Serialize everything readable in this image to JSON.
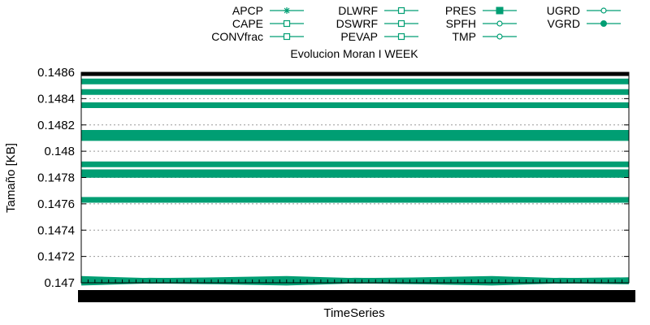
{
  "chart_data": {
    "type": "line",
    "title": "Evolucion Moran I WEEK",
    "xlabel": "TimeSeries",
    "ylabel": "Tamaño [KB]",
    "ylim": [
      0.147,
      0.1486
    ],
    "yticks": [
      "0.147",
      "0.1472",
      "0.1474",
      "0.1476",
      "0.1478",
      "0.148",
      "0.1482",
      "0.1484",
      "0.1486"
    ],
    "y_gridlines": true,
    "x_tick_labels_illegible": true,
    "line_color": "#009e73",
    "legend_position": "top",
    "series": [
      {
        "name": "APCP",
        "marker": "star",
        "value": 0.14784
      },
      {
        "name": "CAPE",
        "marker": "open-square",
        "value": 0.14763
      },
      {
        "name": "CONVfrac",
        "marker": "open-square",
        "value": 0.1481
      },
      {
        "name": "DLWRF",
        "marker": "open-square",
        "value": 0.14845
      },
      {
        "name": "DSWRF",
        "marker": "open-square",
        "value": 0.14835
      },
      {
        "name": "PEVAP",
        "marker": "open-square",
        "value": 0.14814
      },
      {
        "name": "PRES",
        "marker": "filled-square",
        "value": 0.14853
      },
      {
        "name": "SPFH",
        "marker": "open-circle",
        "value": 0.1479
      },
      {
        "name": "TMP",
        "marker": "open-circle",
        "value": 0.14782
      },
      {
        "name": "UGRD",
        "marker": "open-circle",
        "value": 0.14702
      },
      {
        "name": "VGRD",
        "marker": "filled-circle",
        "value": 0.14701
      }
    ]
  }
}
